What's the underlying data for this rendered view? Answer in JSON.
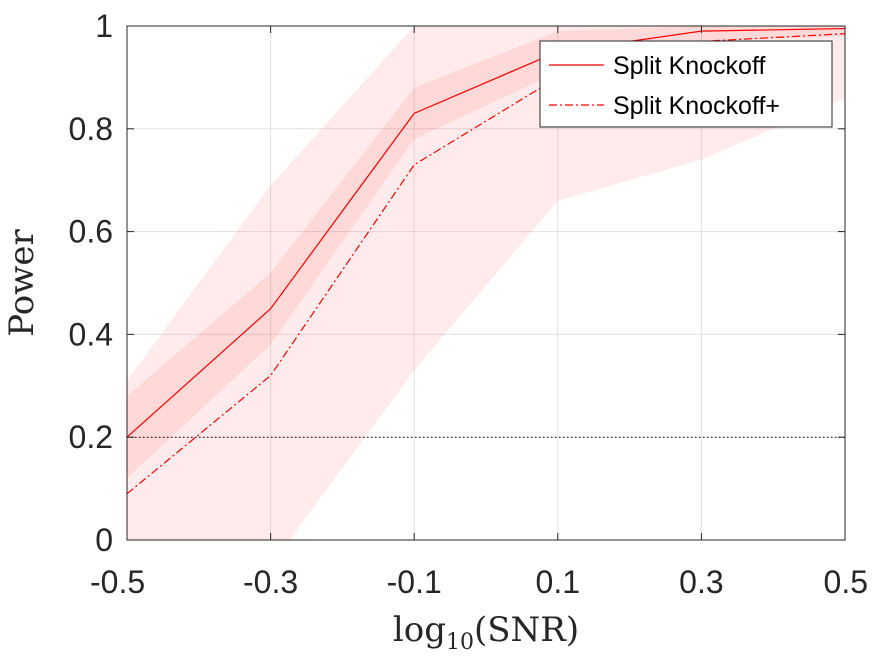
{
  "chart_data": {
    "type": "line",
    "x": [
      -0.5,
      -0.3,
      -0.1,
      0.1,
      0.3,
      0.5
    ],
    "x_tick_labels": [
      "-0.5",
      "-0.3",
      "-0.1",
      "0.1",
      "0.3",
      "0.5"
    ],
    "y_ticks": [
      0,
      0.2,
      0.4,
      0.6,
      0.8,
      1
    ],
    "y_tick_labels": [
      "0",
      "0.2",
      "0.4",
      "0.6",
      "0.8",
      "1"
    ],
    "xlim": [
      -0.5,
      0.5
    ],
    "ylim": [
      0,
      1
    ],
    "xlabel": "log10(SNR)",
    "xlabel_base": "log",
    "xlabel_sub": "10",
    "xlabel_rest": "(SNR)",
    "ylabel": "Power",
    "grid": true,
    "legend_position": "top-right",
    "reference_line": {
      "y": 0.2,
      "style": "dotted",
      "color": "#000000"
    },
    "band_color": "#ff0000",
    "series": [
      {
        "name": "Split Knockoff",
        "style": "solid",
        "color": "#ff0000",
        "values": [
          0.2,
          0.45,
          0.83,
          0.95,
          0.99,
          0.995
        ],
        "band_lower": [
          0.12,
          0.38,
          0.78,
          0.91,
          0.97,
          0.98
        ],
        "band_upper": [
          0.28,
          0.52,
          0.88,
          0.99,
          1.0,
          1.0
        ]
      },
      {
        "name": "Split Knockoff+",
        "style": "dashdot",
        "color": "#ff0000",
        "values": [
          0.09,
          0.32,
          0.73,
          0.9,
          0.97,
          0.985
        ],
        "band_lower": [
          -0.13,
          -0.05,
          0.33,
          0.66,
          0.74,
          0.86
        ],
        "band_upper": [
          0.31,
          0.69,
          1.0,
          1.0,
          1.0,
          1.0
        ]
      }
    ]
  }
}
